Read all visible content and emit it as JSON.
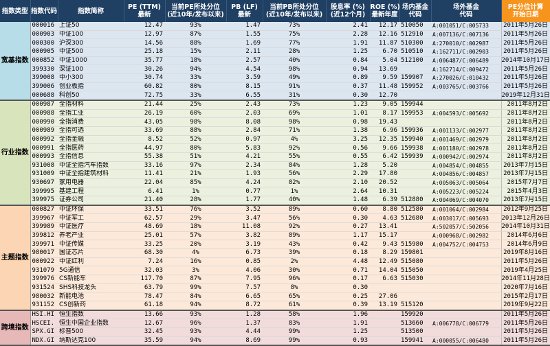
{
  "headers": [
    [
      "指数类型",
      ""
    ],
    [
      "指数代码",
      ""
    ],
    [
      "指数简称",
      ""
    ],
    [
      "PE (TTM)",
      "最新"
    ],
    [
      "当前PE所处分位",
      "(近10年/发布以来)"
    ],
    [
      "PB (LF)",
      "最新"
    ],
    [
      "当前PB所处分位",
      "(近10年/发布以来)"
    ],
    [
      "股息率 (%)",
      "(近12个月)"
    ],
    [
      "ROE (%)",
      "最新年度"
    ],
    [
      "场内基金",
      "代码"
    ],
    [
      "场外基金",
      "代码"
    ],
    [
      "PE分位计算",
      "开始日期"
    ]
  ],
  "groups": [
    {
      "label": "宽基指数",
      "rows": [
        [
          "000016",
          "上证50",
          "12.47",
          "93%",
          "1.47",
          "73%",
          "2.41",
          "12.17",
          "510050",
          "A:001051/C:005733",
          "2011年5月26日"
        ],
        [
          "000903",
          "中证100",
          "12.97",
          "87%",
          "1.55",
          "75%",
          "2.28",
          "12.16",
          "512910",
          "A:007136/C:007136",
          "2011年5月26日"
        ],
        [
          "000300",
          "沪深300",
          "14.56",
          "88%",
          "1.69",
          "77%",
          "1.91",
          "11.87",
          "510300",
          "A:270010/C:002987",
          "2011年5月26日"
        ],
        [
          "000905",
          "中证500",
          "25.18",
          "15%",
          "2.11",
          "28%",
          "1.25",
          "6.70",
          "510510",
          "A:162711/C:002903",
          "2011年5月26日"
        ],
        [
          "000852",
          "中证1000",
          "35.77",
          "18%",
          "2.57",
          "40%",
          "0.84",
          "5.04",
          "512100",
          "A:006487/C:006489",
          "2014年10月17日"
        ],
        [
          "399330",
          "深证100",
          "30.26",
          "94%",
          "4.54",
          "98%",
          "0.94",
          "13.69",
          "",
          "A:162714/C:009472",
          "2011年5月26日"
        ],
        [
          "399008",
          "中小300",
          "30.74",
          "33%",
          "3.59",
          "49%",
          "0.89",
          "9.59",
          "159907",
          "A:270026/C:010432",
          "2011年5月26日"
        ],
        [
          "399006",
          "创业板指",
          "60.82",
          "80%",
          "8.15",
          "91%",
          "0.37",
          "11.48",
          "159952",
          "A:003765/C:003766",
          "2011年5月26日"
        ],
        [
          "000688",
          "科创50",
          "72.75",
          "33%",
          "6.55",
          "31%",
          "0.30",
          "12.70",
          "",
          "",
          "2019年12月31日"
        ]
      ]
    },
    {
      "label": "行业指数",
      "rows": [
        [
          "000987",
          "全指材料",
          "21.44",
          "25%",
          "2.43",
          "73%",
          "1.23",
          "9.05",
          "159944",
          "",
          "2011年8月2日"
        ],
        [
          "000988",
          "全指工业",
          "26.19",
          "60%",
          "2.03",
          "69%",
          "1.01",
          "8.17",
          "159953",
          "A:004593/C:005692",
          "2011年8月2日"
        ],
        [
          "000990",
          "全指消费",
          "43.05",
          "98%",
          "8.08",
          "98%",
          "0.98",
          "19.43",
          "",
          "",
          "2011年8月2日"
        ],
        [
          "000989",
          "全指可选",
          "33.69",
          "88%",
          "2.84",
          "71%",
          "1.38",
          "6.96",
          "159936",
          "A:001133/C:002977",
          "2011年8月2日"
        ],
        [
          "000992",
          "全指金融",
          "8.52",
          "52%",
          "0.97",
          "4%",
          "3.25",
          "12.35",
          "159940",
          "A:001469/C:002979",
          "2011年8月2日"
        ],
        [
          "000991",
          "全指医药",
          "44.97",
          "80%",
          "5.83",
          "92%",
          "0.56",
          "9.66",
          "159938",
          "A:001180/C:002978",
          "2011年8月2日"
        ],
        [
          "000993",
          "全指信息",
          "55.38",
          "51%",
          "4.21",
          "55%",
          "0.55",
          "6.42",
          "159939",
          "A:000942/C:002974",
          "2011年8月2日"
        ],
        [
          "931008",
          "中证全指汽车指数",
          "33.16",
          "97%",
          "2.34",
          "84%",
          "1.28",
          "5.20",
          "",
          "A:004854/C:004855",
          "2013年7月15日"
        ],
        [
          "931009",
          "中证全指建筑材料",
          "11.41",
          "21%",
          "1.93",
          "56%",
          "2.29",
          "17.80",
          "",
          "A:004856/C:004857",
          "2013年7月15日"
        ],
        [
          "930697",
          "家用电器",
          "22.04",
          "85%",
          "4.24",
          "82%",
          "2.10",
          "20.52",
          "",
          "A:005063/C:005064",
          "2015年7月7日"
        ],
        [
          "399995",
          "基建工程",
          "6.41",
          "1%",
          "0.77",
          "1%",
          "2.64",
          "10.31",
          "",
          "A:005223/C:005224",
          "2015年4月3日"
        ],
        [
          "399975",
          "证券公司",
          "21.40",
          "28%",
          "1.77",
          "40%",
          "1.48",
          "6.39",
          "512880",
          "A:004069/C:004070",
          "2013年7月15日"
        ]
      ]
    },
    {
      "label": "主题指数",
      "rows": [
        [
          "000827",
          "中证环保",
          "33.51",
          "76%",
          "3.52",
          "89%",
          "0.60",
          "8.80",
          "512580",
          "A:001064/C:002984",
          "2012年9月25日"
        ],
        [
          "399967",
          "中证军工",
          "62.57",
          "29%",
          "3.47",
          "56%",
          "0.30",
          "4.63",
          "512680",
          "A:003017/C:005693",
          "2013年12月26日"
        ],
        [
          "399989",
          "中证医疗",
          "48.69",
          "18%",
          "11.08",
          "92%",
          "0.27",
          "13.41",
          "",
          "A:502057/C:502056",
          "2014年10月31日"
        ],
        [
          "399812",
          "养老产业",
          "25.01",
          "57%",
          "3.82",
          "89%",
          "1.17",
          "15.17",
          "",
          "A:000968/C:002982",
          "2014年6月6日"
        ],
        [
          "399971",
          "中证传媒",
          "33.25",
          "20%",
          "3.19",
          "43%",
          "0.42",
          "9.43",
          "515980",
          "A:004752/C:004753",
          "2014年6月9日"
        ],
        [
          "980017",
          "国证芯片",
          "68.30",
          "4%",
          "6.73",
          "39%",
          "0.18",
          "8.29",
          "159801",
          "",
          "2019年8月16日"
        ],
        [
          "000922",
          "中证红利",
          "7.24",
          "16%",
          "0.85",
          "2%",
          "4.48",
          "12.49",
          "515080",
          "",
          "2011年5月26日"
        ],
        [
          "931079",
          "5G通信",
          "32.03",
          "3%",
          "4.06",
          "30%",
          "0.71",
          "14.04",
          "515050",
          "",
          "2019年4月25日"
        ],
        [
          "399976",
          "CS新能车",
          "117.70",
          "87%",
          "7.95",
          "96%",
          "0.17",
          "6.63",
          "515030",
          "",
          "2014年11月28日"
        ],
        [
          "931524",
          "SHS科技龙头",
          "63.79",
          "99%",
          "7.57",
          "8%",
          "0.30",
          "",
          "",
          "",
          "2020年7月16日"
        ],
        [
          "980032",
          "新能电池",
          "78.47",
          "84%",
          "6.65",
          "65%",
          "0.25",
          "27.06",
          "",
          "",
          "2015年2月17日"
        ],
        [
          "931152",
          "CS创新药",
          "61.18",
          "94%",
          "8.72",
          "61%",
          "0.39",
          "13.19",
          "515120",
          "",
          "2019年9月22日"
        ]
      ]
    },
    {
      "label": "跨境指数",
      "rows": [
        [
          "HSI.HI",
          "恒生指数",
          "13.66",
          "93%",
          "1.28",
          "58%",
          "1.96",
          "",
          "159920",
          "",
          "2011年5月26日"
        ],
        [
          "HSCEI.",
          "恒生中国企业指数",
          "12.67",
          "96%",
          "1.37",
          "83%",
          "1.91",
          "",
          "513660",
          "A:006778/C:006779",
          "2011年5月26日"
        ],
        [
          "SPX.GI",
          "标普500",
          "32.45",
          "93%",
          "4.44",
          "99%",
          "1.25",
          "",
          "513500",
          "",
          "2011年5月26日"
        ],
        [
          "NDX.GI",
          "纳斯达克100",
          "35.59",
          "94%",
          "8.69",
          "99%",
          "0.93",
          "",
          "159941",
          "A:000055/C:006480",
          "2011年5月26日"
        ]
      ]
    }
  ]
}
